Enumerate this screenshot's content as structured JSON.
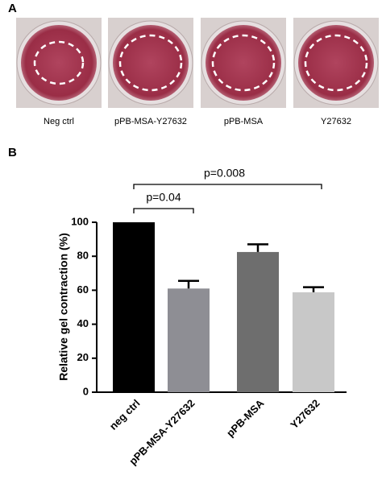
{
  "panel_labels": [
    "A",
    "B"
  ],
  "photo_captions": [
    "Neg ctrl",
    "pPB-MSA-Y27632",
    "pPB-MSA",
    "Y27632"
  ],
  "chart_data": {
    "type": "bar",
    "y_label": "Relative gel contraction (%)",
    "categories": [
      "neg ctrl",
      "pPB-MSA-Y27632",
      "pPB-MSA",
      "Y27632"
    ],
    "values": [
      100,
      61,
      82.5,
      58.8
    ],
    "errors": [
      null,
      4.5,
      4.5,
      3
    ],
    "colors": [
      "#000000",
      "#8e8e94",
      "#6e6e6e",
      "#c8c8c8"
    ],
    "ylim": [
      0,
      100
    ],
    "yticks": [
      0,
      20,
      40,
      60,
      80,
      100
    ],
    "annotations": [
      "p=0.04",
      "p=0.008"
    ]
  }
}
